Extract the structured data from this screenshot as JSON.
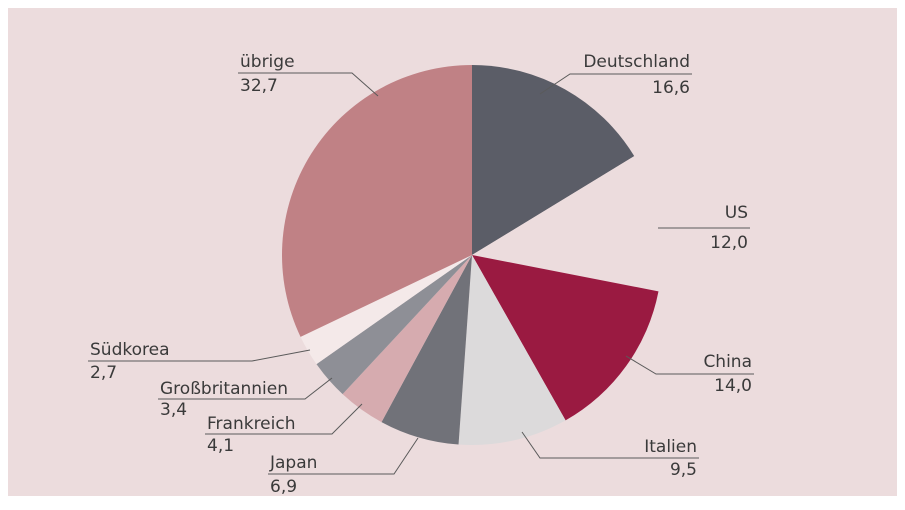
{
  "chart_data": {
    "type": "pie",
    "categories": [
      "Deutschland",
      "US",
      "China",
      "Italien",
      "Japan",
      "Frankreich",
      "Großbritannien",
      "Südkorea",
      "übrige"
    ],
    "values": [
      16.6,
      12.0,
      14.0,
      9.5,
      6.9,
      4.1,
      3.4,
      2.7,
      32.7
    ],
    "value_labels": [
      "16,6",
      "12,0",
      "14,0",
      "9,5",
      "6,9",
      "4,1",
      "3,4",
      "2,7",
      "32,7"
    ],
    "colors": [
      "#5b5d67",
      "#ecdcdd",
      "#9a1a41",
      "#dcdadb",
      "#717279",
      "#d6abaf",
      "#8e8f96",
      "#f4e9e9",
      "#c08185"
    ]
  }
}
